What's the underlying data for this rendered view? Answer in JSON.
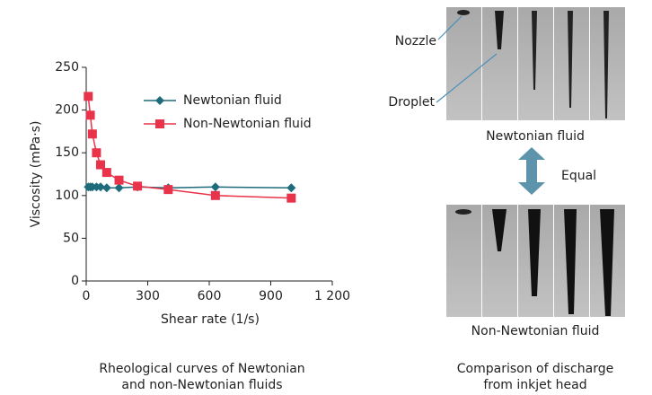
{
  "chart_data": {
    "type": "line",
    "x_label": "Shear rate (1/s)",
    "y_label": "Viscosity (mPa·s)",
    "x": [
      10,
      20,
      30,
      50,
      70,
      100,
      160,
      250,
      400,
      630,
      1000
    ],
    "series": [
      {
        "name": "Newtonian fluid",
        "color": "#1d6b7b",
        "marker": "diamond",
        "values": [
          110,
          110,
          110,
          110,
          110,
          109,
          109,
          110,
          109,
          110,
          109
        ]
      },
      {
        "name": "Non-Newtonian fluid",
        "color": "#e8334a",
        "marker": "square",
        "values": [
          216,
          194,
          172,
          150,
          136,
          127,
          118,
          111,
          107,
          100,
          97
        ]
      }
    ],
    "xlim": [
      0,
      1200
    ],
    "ylim": [
      0,
      250
    ],
    "xticks": [
      0,
      300,
      600,
      900,
      {
        "value": 1200,
        "label": "1 200"
      }
    ],
    "yticks": [
      0,
      50,
      100,
      150,
      200,
      250
    ],
    "legend": "upper-right",
    "caption": [
      "Rheological curves of Newtonian",
      "and non-Newtonian fluids"
    ]
  },
  "photos": {
    "nozzle": "Nozzle",
    "droplet": "Droplet",
    "top_label": "Newtonian fluid",
    "equal": "Equal",
    "bottom_label": "Non-Newtonian fluid",
    "caption": [
      "Comparison of discharge",
      "from inkjet head"
    ]
  }
}
